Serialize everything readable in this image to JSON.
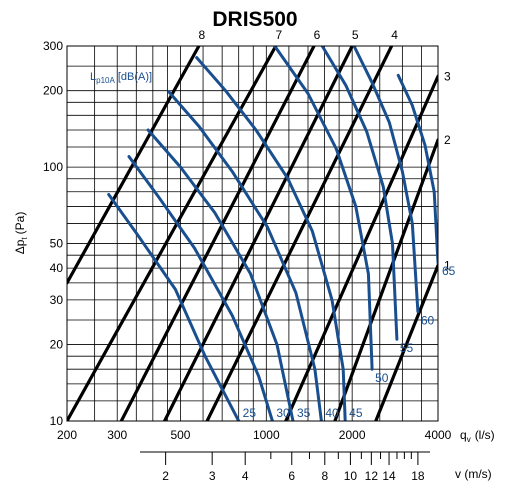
{
  "chart_data": {
    "type": "line",
    "title": "DRIS500",
    "xlabel_main": "q",
    "xlabel_sub": "v",
    "xlabel_unit": "(l/s)",
    "xlabel2": "v (m/s)",
    "ylabel_main": "Δp",
    "ylabel_sub": "t",
    "ylabel_unit": "(Pa)",
    "legend_main": "L",
    "legend_sub": "p10A",
    "legend_unit": "[dB(A)]",
    "xscale": "log",
    "yscale": "log",
    "xlim": [
      200,
      4000
    ],
    "ylim": [
      10,
      300
    ],
    "grid": true,
    "x_ticks": [
      {
        "value": 200,
        "label": "200"
      },
      {
        "value": 300,
        "label": "300"
      },
      {
        "value": 500,
        "label": "500"
      },
      {
        "value": 1000,
        "label": "1000"
      },
      {
        "value": 2000,
        "label": "2000"
      },
      {
        "value": 4000,
        "label": "4000"
      }
    ],
    "y_ticks": [
      {
        "value": 10,
        "label": "10"
      },
      {
        "value": 20,
        "label": "20"
      },
      {
        "value": 30,
        "label": "30"
      },
      {
        "value": 40,
        "label": "40"
      },
      {
        "value": 50,
        "label": "50"
      },
      {
        "value": 100,
        "label": "100"
      },
      {
        "value": 200,
        "label": "200"
      },
      {
        "value": 300,
        "label": "300"
      }
    ],
    "velocity_ticks": [
      {
        "value": 2,
        "label": "2"
      },
      {
        "value": 3,
        "label": "3"
      },
      {
        "value": 4,
        "label": "4"
      },
      {
        "value": 6,
        "label": "6"
      },
      {
        "value": 8,
        "label": "8"
      },
      {
        "value": 10,
        "label": "10"
      },
      {
        "value": 12,
        "label": "12"
      },
      {
        "value": 14,
        "label": "14"
      },
      {
        "value": 18,
        "label": "18"
      }
    ],
    "damper_lines": [
      {
        "label": "8",
        "points": [
          [
            200,
            35
          ],
          [
            580,
            300
          ]
        ]
      },
      {
        "label": "7",
        "points": [
          [
            200,
            10
          ],
          [
            1080,
            300
          ]
        ]
      },
      {
        "label": "6",
        "points": [
          [
            310,
            10
          ],
          [
            1470,
            300
          ]
        ]
      },
      {
        "label": "5",
        "points": [
          [
            440,
            10
          ],
          [
            2000,
            300
          ]
        ]
      },
      {
        "label": "4",
        "points": [
          [
            620,
            10
          ],
          [
            2750,
            300
          ]
        ]
      },
      {
        "label": "3",
        "points": [
          [
            1170,
            10
          ],
          [
            4000,
            228
          ]
        ]
      },
      {
        "label": "2",
        "points": [
          [
            1740,
            10
          ],
          [
            4000,
            128
          ]
        ]
      },
      {
        "label": "1",
        "points": [
          [
            2420,
            10
          ],
          [
            4000,
            41
          ]
        ]
      }
    ],
    "sound_curves": [
      {
        "label": "25",
        "points": [
          [
            280,
            78
          ],
          [
            350,
            55
          ],
          [
            480,
            33
          ],
          [
            610,
            18
          ],
          [
            800,
            10
          ]
        ]
      },
      {
        "label": "30",
        "points": [
          [
            330,
            110
          ],
          [
            420,
            76
          ],
          [
            560,
            48
          ],
          [
            760,
            26
          ],
          [
            940,
            15
          ],
          [
            1050,
            10
          ]
        ]
      },
      {
        "label": "35",
        "points": [
          [
            385,
            140
          ],
          [
            500,
            100
          ],
          [
            660,
            66
          ],
          [
            880,
            38
          ],
          [
            1090,
            20
          ],
          [
            1240,
            10
          ]
        ]
      },
      {
        "label": "40",
        "points": [
          [
            455,
            198
          ],
          [
            580,
            145
          ],
          [
            760,
            96
          ],
          [
            1010,
            58
          ],
          [
            1270,
            32
          ],
          [
            1480,
            16
          ],
          [
            1560,
            10
          ]
        ]
      },
      {
        "label": "45",
        "points": [
          [
            570,
            270
          ],
          [
            720,
            200
          ],
          [
            920,
            140
          ],
          [
            1190,
            90
          ],
          [
            1450,
            56
          ],
          [
            1700,
            30
          ],
          [
            1860,
            16
          ],
          [
            1890,
            10
          ]
        ]
      },
      {
        "label": "50",
        "points": [
          [
            1070,
            300
          ],
          [
            1400,
            195
          ],
          [
            1760,
            118
          ],
          [
            2060,
            70
          ],
          [
            2280,
            38
          ],
          [
            2350,
            16
          ]
        ]
      },
      {
        "label": "55",
        "points": [
          [
            1570,
            300
          ],
          [
            1900,
            210
          ],
          [
            2250,
            138
          ],
          [
            2570,
            84
          ],
          [
            2770,
            50
          ],
          [
            2870,
            21
          ]
        ]
      },
      {
        "label": "60",
        "points": [
          [
            2030,
            300
          ],
          [
            2350,
            215
          ],
          [
            2700,
            150
          ],
          [
            3000,
            96
          ],
          [
            3250,
            60
          ],
          [
            3400,
            27
          ]
        ]
      },
      {
        "label": "65",
        "points": [
          [
            2900,
            230
          ],
          [
            3250,
            175
          ],
          [
            3600,
            122
          ],
          [
            3880,
            80
          ],
          [
            4000,
            42
          ]
        ]
      }
    ]
  }
}
